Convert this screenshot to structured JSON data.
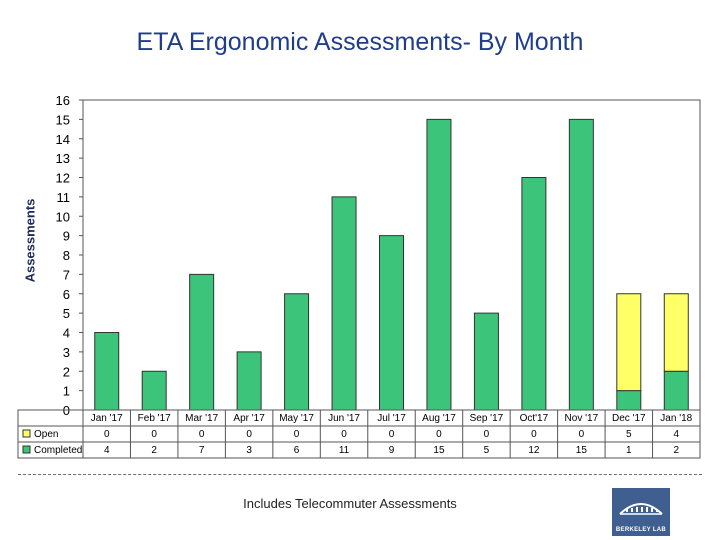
{
  "chart_data": {
    "type": "bar",
    "stacked": true,
    "title": "ETA Ergonomic Assessments- By Month",
    "xlabel": "",
    "ylabel": "Assessments",
    "ylim": [
      0,
      16
    ],
    "yticks": [
      0,
      1,
      2,
      3,
      4,
      5,
      6,
      7,
      8,
      9,
      10,
      11,
      12,
      13,
      14,
      15,
      16
    ],
    "categories": [
      "Jan '17",
      "Feb '17",
      "Mar '17",
      "Apr '17",
      "May '17",
      "Jun '17",
      "Jul '17",
      "Aug '17",
      "Sep '17",
      "Oct'17",
      "Nov '17",
      "Dec '17",
      "Jan '18"
    ],
    "series": [
      {
        "name": "Completed",
        "color": "#3cc47a",
        "values": [
          4,
          2,
          7,
          3,
          6,
          11,
          9,
          15,
          5,
          12,
          15,
          1,
          2
        ]
      },
      {
        "name": "Open",
        "color": "#ffff66",
        "values": [
          0,
          0,
          0,
          0,
          0,
          0,
          0,
          0,
          0,
          0,
          0,
          5,
          4
        ]
      }
    ],
    "data_table": true
  },
  "footnote": "Includes Telecommuter Assessments",
  "logo": {
    "text": "BERKELEY LAB"
  }
}
